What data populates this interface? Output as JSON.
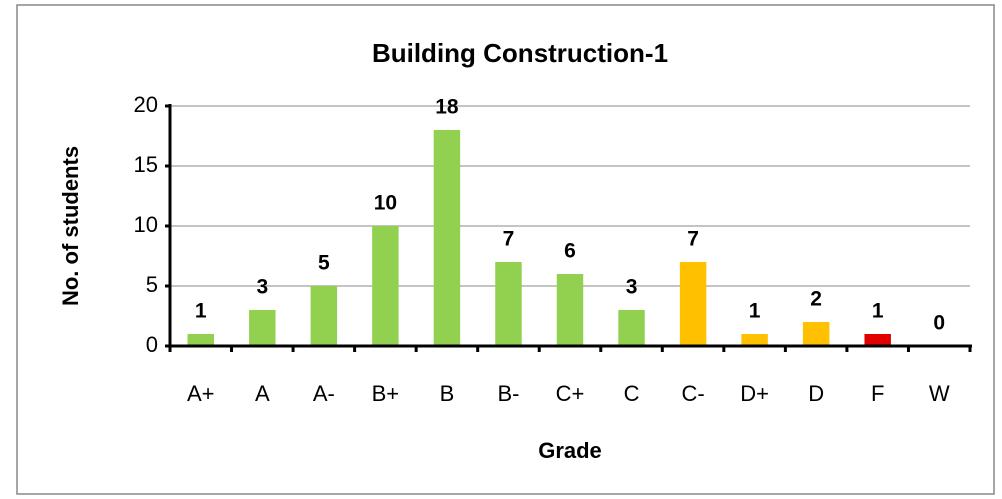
{
  "chart_data": {
    "type": "bar",
    "title": "Building Construction-1",
    "x_label": "Grade",
    "y_label": "No. of students",
    "categories": [
      "A+",
      "A",
      "A-",
      "B+",
      "B",
      "B-",
      "C+",
      "C",
      "C-",
      "D+",
      "D",
      "F",
      "W"
    ],
    "values": [
      1,
      3,
      5,
      10,
      18,
      7,
      6,
      3,
      7,
      1,
      2,
      1,
      0
    ],
    "colors": [
      "#92d050",
      "#92d050",
      "#92d050",
      "#92d050",
      "#92d050",
      "#92d050",
      "#92d050",
      "#92d050",
      "#ffc000",
      "#ffc000",
      "#ffc000",
      "#e00000",
      "#92d050"
    ],
    "ylim": [
      0,
      20
    ],
    "yticks": [
      0,
      5,
      10,
      15,
      20
    ],
    "grid": true
  }
}
